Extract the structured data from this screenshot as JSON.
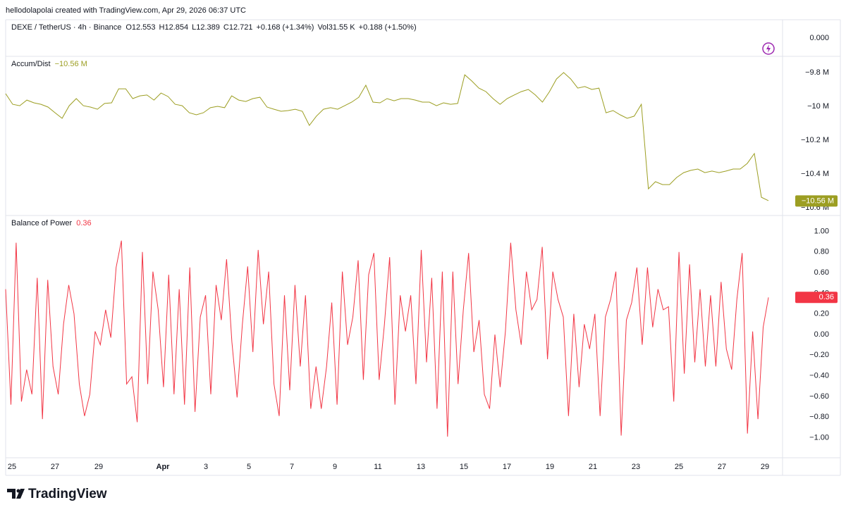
{
  "header": {
    "credit": "hellodolapolai created with TradingView.com, Apr 29, 2026 06:37 UTC"
  },
  "chart_data": [
    {
      "type": "price",
      "title": "DEXE / TetherUS · 4h · Binance",
      "legend_items": [
        "O12.553",
        "H12.854",
        "L12.389",
        "C12.721",
        "+0.168 (+1.34%)",
        "Vol31.55 K",
        "+0.188 (+1.50%)"
      ],
      "yticks": [
        {
          "value": 0,
          "label": "0.000"
        }
      ]
    },
    {
      "type": "line",
      "title": "Accum/Dist",
      "color": "#9c9e22",
      "current": {
        "value": -10.56,
        "label": "−10.56 M"
      },
      "ylim": [
        -10.646,
        -9.704
      ],
      "yticks": [
        {
          "value": -9.8,
          "label": "−9.8 M"
        },
        {
          "value": -10,
          "label": "−10 M"
        },
        {
          "value": -10.2,
          "label": "−10.2 M"
        },
        {
          "value": -10.4,
          "label": "−10.4 M"
        },
        {
          "value": -10.6,
          "label": "−10.6 M"
        }
      ],
      "values": [
        -9.925,
        -9.988,
        -9.996,
        -9.963,
        -9.979,
        -9.988,
        -10.004,
        -10.038,
        -10.071,
        -9.996,
        -9.954,
        -9.996,
        -10.004,
        -10.017,
        -9.983,
        -9.979,
        -9.896,
        -9.896,
        -9.954,
        -9.938,
        -9.933,
        -9.963,
        -9.921,
        -9.942,
        -9.988,
        -9.996,
        -10.038,
        -10.05,
        -10.038,
        -10.008,
        -10,
        -10.008,
        -9.938,
        -9.963,
        -9.971,
        -9.954,
        -9.946,
        -10.004,
        -10.017,
        -10.029,
        -10.025,
        -10.017,
        -10.029,
        -10.113,
        -10.058,
        -10.017,
        -10.008,
        -10.017,
        -9.996,
        -9.975,
        -9.946,
        -9.875,
        -9.975,
        -9.979,
        -9.954,
        -9.967,
        -9.954,
        -9.954,
        -9.963,
        -9.975,
        -9.975,
        -9.996,
        -9.979,
        -9.988,
        -9.983,
        -9.813,
        -9.85,
        -9.892,
        -9.913,
        -9.954,
        -9.988,
        -9.954,
        -9.933,
        -9.913,
        -9.9,
        -9.933,
        -9.975,
        -9.913,
        -9.838,
        -9.8,
        -9.838,
        -9.892,
        -9.883,
        -9.9,
        -9.892,
        -10.038,
        -10.025,
        -10.05,
        -10.071,
        -10.058,
        -9.988,
        -10.488,
        -10.446,
        -10.463,
        -10.463,
        -10.421,
        -10.392,
        -10.379,
        -10.371,
        -10.392,
        -10.383,
        -10.392,
        -10.383,
        -10.371,
        -10.371,
        -10.338,
        -10.279,
        -10.538,
        -10.558
      ]
    },
    {
      "type": "line",
      "title": "Balance of Power",
      "color": "#f23645",
      "current": {
        "value": 0.36,
        "label": "0.36"
      },
      "ylim": [
        -1.195,
        1.154
      ],
      "yticks": [
        {
          "value": 1,
          "label": "1.00"
        },
        {
          "value": 0.8,
          "label": "0.80"
        },
        {
          "value": 0.6,
          "label": "0.60"
        },
        {
          "value": 0.4,
          "label": "0.40"
        },
        {
          "value": 0.2,
          "label": "0.20"
        },
        {
          "value": 0,
          "label": "0.00"
        },
        {
          "value": -0.2,
          "label": "−0.20"
        },
        {
          "value": -0.4,
          "label": "−0.40"
        },
        {
          "value": -0.6,
          "label": "−0.60"
        },
        {
          "value": -0.8,
          "label": "−0.80"
        },
        {
          "value": -1,
          "label": "−1.00"
        }
      ],
      "values": [
        0.44,
        -0.68,
        0.89,
        -0.65,
        -0.34,
        -0.58,
        0.55,
        -0.82,
        0.53,
        -0.31,
        -0.58,
        0.1,
        0.48,
        0.2,
        -0.48,
        -0.79,
        -0.58,
        0.03,
        -0.1,
        0.24,
        -0.03,
        0.65,
        0.91,
        -0.48,
        -0.41,
        -0.85,
        0.8,
        -0.48,
        0.61,
        0.24,
        -0.51,
        0.58,
        -0.58,
        0.44,
        -0.68,
        0.65,
        -0.75,
        0.17,
        0.38,
        -0.58,
        0.48,
        0.14,
        0.73,
        -0.07,
        -0.61,
        0.1,
        0.66,
        -0.17,
        0.82,
        0.1,
        0.61,
        -0.48,
        -0.79,
        0.38,
        -0.54,
        0.48,
        -0.31,
        0.38,
        -0.72,
        -0.31,
        -0.72,
        -0.31,
        0.31,
        -0.68,
        0.61,
        -0.1,
        0.17,
        0.72,
        -0.44,
        0.58,
        0.79,
        -0.44,
        0.1,
        0.75,
        -0.68,
        0.38,
        0.03,
        0.38,
        -0.48,
        0.82,
        -0.27,
        0.55,
        -0.72,
        0.61,
        -0.99,
        0.61,
        -0.48,
        0.24,
        0.79,
        -0.17,
        0.14,
        -0.58,
        -0.72,
        0,
        -0.51,
        0.03,
        0.89,
        0.24,
        -0.1,
        0.61,
        0.24,
        0.34,
        0.85,
        -0.24,
        0.61,
        0.34,
        0.17,
        -0.79,
        0.2,
        -0.51,
        0.1,
        -0.14,
        0.2,
        -0.79,
        0.17,
        0.34,
        0.61,
        -0.98,
        0.14,
        0.31,
        0.65,
        -0.1,
        0.65,
        0.07,
        0.44,
        0.24,
        0.27,
        -0.65,
        0.8,
        -0.38,
        0.68,
        -0.27,
        0.44,
        -0.31,
        0.38,
        -0.31,
        0.51,
        -0.14,
        -0.34,
        0.34,
        0.79,
        -0.96,
        0.03,
        -0.82,
        0.07,
        0.36
      ]
    }
  ],
  "x_axis": {
    "labels": [
      "25",
      "27",
      "29",
      "Apr",
      "3",
      "5",
      "7",
      "9",
      "11",
      "13",
      "15",
      "17",
      "19",
      "21",
      "23",
      "25",
      "27",
      "29"
    ]
  },
  "footer": {
    "brand": "TradingView"
  }
}
